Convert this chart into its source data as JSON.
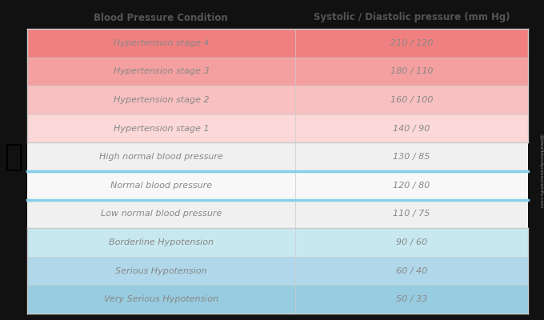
{
  "title_col1": "Blood Pressure Condition",
  "title_col2": "Systolic / Diastolic pressure (mm Hg)",
  "rows": [
    {
      "condition": "Hypertension stage 4",
      "pressure": "210 / 120",
      "bg": "#f08080",
      "text_color": "#888888",
      "italic": true
    },
    {
      "condition": "Hypertension stage 3",
      "pressure": "180 / 110",
      "bg": "#f4a0a0",
      "text_color": "#888888",
      "italic": true
    },
    {
      "condition": "Hypertension stage 2",
      "pressure": "160 / 100",
      "bg": "#f8c0c0",
      "text_color": "#888888",
      "italic": true
    },
    {
      "condition": "Hypertension stage 1",
      "pressure": "140 / 90",
      "bg": "#fcd8d8",
      "text_color": "#888888",
      "italic": true
    },
    {
      "condition": "High normal blood pressure",
      "pressure": "130 / 85",
      "bg": "#f0f0f0",
      "text_color": "#888888",
      "italic": true
    },
    {
      "condition": "Normal blood pressure",
      "pressure": "120 / 80",
      "bg": "#f8f8f8",
      "text_color": "#888888",
      "italic": true
    },
    {
      "condition": "Low normal blood pressure",
      "pressure": "110 / 75",
      "bg": "#f0f0f0",
      "text_color": "#888888",
      "italic": true
    },
    {
      "condition": "Borderline Hypotension",
      "pressure": "90 / 60",
      "bg": "#c8e8f0",
      "text_color": "#888888",
      "italic": true
    },
    {
      "condition": "Serious Hypotension",
      "pressure": "60 / 40",
      "bg": "#b0d8ea",
      "text_color": "#888888",
      "italic": true
    },
    {
      "condition": "Very Serious Hypotension",
      "pressure": "50 / 33",
      "bg": "#98cce0",
      "text_color": "#888888",
      "italic": true
    }
  ],
  "header_bg": "#111111",
  "header_text_color": "#555555",
  "border_color": "#cccccc",
  "normal_row_border_color": "#87ceeb",
  "watermark": "@idealbloodpressureinfo.com",
  "col_split": 0.535,
  "fig_bg": "#111111"
}
